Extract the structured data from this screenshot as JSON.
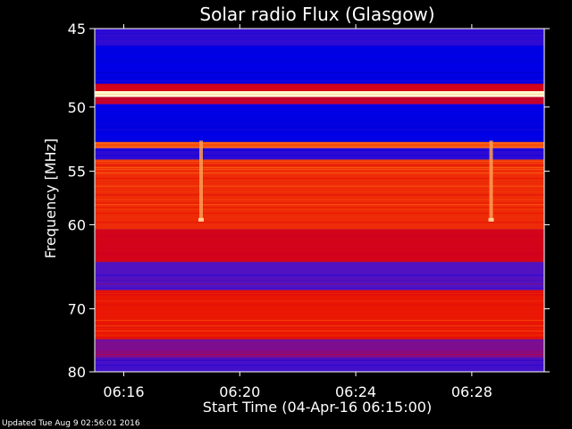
{
  "chart_data": {
    "type": "heatmap",
    "title": "Solar radio Flux (Glasgow)",
    "xlabel": "Start Time (04-Apr-16 06:15:00)",
    "ylabel": "Frequency [MHz]",
    "x_range": [
      "06:15:00",
      "06:30:30"
    ],
    "x_ticks": [
      "06:16",
      "06:20",
      "06:24",
      "06:28"
    ],
    "y_range": [
      45,
      80
    ],
    "y_ticks": [
      45,
      50,
      55,
      60,
      70,
      80
    ],
    "y_scale": "reciprocal",
    "bands": [
      {
        "from_mhz": 45.0,
        "to_mhz": 46.0,
        "level": 0.3
      },
      {
        "from_mhz": 46.0,
        "to_mhz": 48.4,
        "level": 0.2
      },
      {
        "from_mhz": 48.4,
        "to_mhz": 48.9,
        "level": 0.6
      },
      {
        "from_mhz": 48.9,
        "to_mhz": 49.3,
        "level": 1.0
      },
      {
        "from_mhz": 49.3,
        "to_mhz": 49.8,
        "level": 0.55
      },
      {
        "from_mhz": 49.8,
        "to_mhz": 52.6,
        "level": 0.2
      },
      {
        "from_mhz": 52.6,
        "to_mhz": 53.1,
        "level": 0.8
      },
      {
        "from_mhz": 53.1,
        "to_mhz": 54.0,
        "level": 0.3
      },
      {
        "from_mhz": 54.0,
        "to_mhz": 60.5,
        "level": 0.75
      },
      {
        "from_mhz": 60.5,
        "to_mhz": 64.0,
        "level": 0.6
      },
      {
        "from_mhz": 64.0,
        "to_mhz": 67.5,
        "level": 0.38
      },
      {
        "from_mhz": 67.5,
        "to_mhz": 74.5,
        "level": 0.72
      },
      {
        "from_mhz": 74.5,
        "to_mhz": 77.5,
        "level": 0.45
      },
      {
        "from_mhz": 77.5,
        "to_mhz": 80.0,
        "level": 0.35
      }
    ],
    "bursts": [
      {
        "time": "06:18:40",
        "from_mhz": 52.5,
        "to_mhz": 59.5
      },
      {
        "time": "06:28:40",
        "from_mhz": 52.5,
        "to_mhz": 59.5
      }
    ],
    "grid": false,
    "legend": "none"
  },
  "footer": {
    "text": "Updated Tue Aug  9 02:56:01 2016"
  }
}
